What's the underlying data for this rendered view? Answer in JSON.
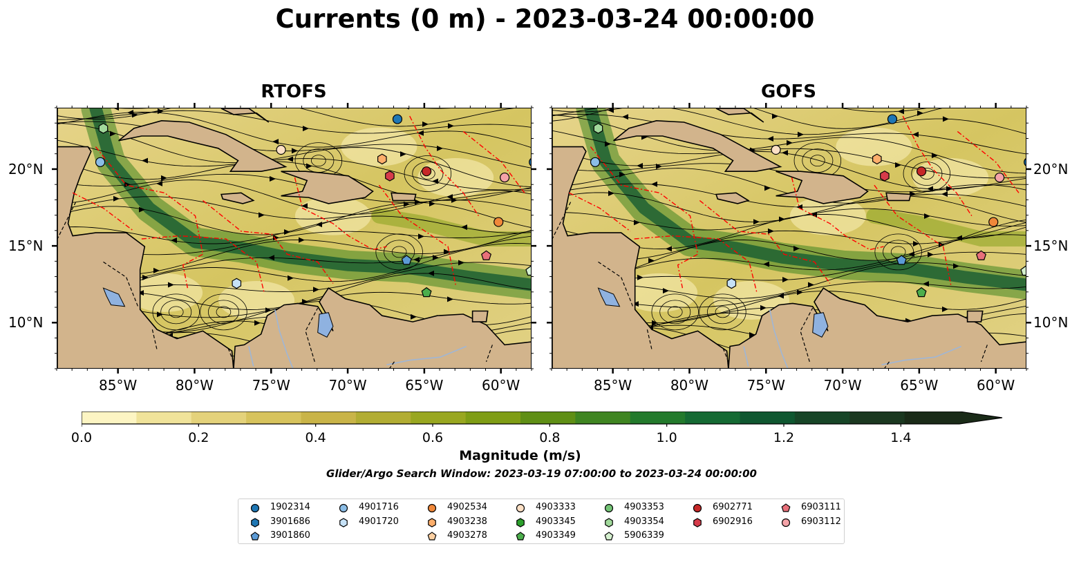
{
  "figure": {
    "title": "Currents (0 m) - 2023-03-24 00:00:00",
    "search_window": "Glider/Argo Search Window: 2023-03-19 07:00:00 to 2023-03-24 00:00:00"
  },
  "panels": [
    {
      "title": "RTOFS"
    },
    {
      "title": "GOFS"
    }
  ],
  "axes": {
    "lon_ticks": [
      "85°W",
      "80°W",
      "75°W",
      "70°W",
      "65°W",
      "60°W"
    ],
    "lat_ticks": [
      "20°N",
      "15°N",
      "10°N"
    ],
    "lon_range": [
      -89.0,
      -58.0
    ],
    "lat_range": [
      7.0,
      24.0
    ]
  },
  "colorbar": {
    "label": "Magnitude (m/s)",
    "ticks": [
      "0.0",
      "0.2",
      "0.4",
      "0.6",
      "0.8",
      "1.0",
      "1.2",
      "1.4"
    ],
    "range": [
      0.0,
      1.5
    ],
    "extend": "max",
    "colors": [
      "#fdf5c3",
      "#f0e39a",
      "#e4d27b",
      "#d7c35d",
      "#c9b448",
      "#b2ad33",
      "#99a720",
      "#7f9d15",
      "#5f8f15",
      "#3f8521",
      "#237a2c",
      "#156a33",
      "#0f5730",
      "#174527",
      "#1b3820",
      "#1a2b18"
    ]
  },
  "colors": {
    "land": "#d2b48c",
    "lakes": "#8fb2e0",
    "rivers": "#9fb6d6",
    "eez_lines": "#ff0000",
    "borders": "#000000"
  },
  "legend": {
    "columns": [
      [
        {
          "id": "1902314",
          "marker": "circle",
          "color": "#1f77b4"
        },
        {
          "id": "3901686",
          "marker": "hexagon",
          "color": "#1f77b4"
        },
        {
          "id": "3901860",
          "marker": "pentagon",
          "color": "#5c9bd6"
        }
      ],
      [
        {
          "id": "4901716",
          "marker": "circle",
          "color": "#8bbde6"
        },
        {
          "id": "4901720",
          "marker": "hexagon",
          "color": "#c6e2f7"
        }
      ],
      [
        {
          "id": "4902534",
          "marker": "circle",
          "color": "#f0883a"
        },
        {
          "id": "4903238",
          "marker": "hexagon",
          "color": "#fdae6b"
        },
        {
          "id": "4903278",
          "marker": "pentagon",
          "color": "#fdd0a2"
        }
      ],
      [
        {
          "id": "4903333",
          "marker": "circle",
          "color": "#fde0c5"
        },
        {
          "id": "4903345",
          "marker": "hexagon",
          "color": "#2ca02c"
        },
        {
          "id": "4903349",
          "marker": "pentagon",
          "color": "#4cae4c"
        }
      ],
      [
        {
          "id": "4903353",
          "marker": "circle",
          "color": "#74c476"
        },
        {
          "id": "4903354",
          "marker": "hexagon",
          "color": "#a1d99b"
        },
        {
          "id": "5906339",
          "marker": "pentagon",
          "color": "#d5f0cf"
        }
      ],
      [
        {
          "id": "6902771",
          "marker": "circle",
          "color": "#c62828"
        },
        {
          "id": "6902916",
          "marker": "hexagon",
          "color": "#d63b4a"
        }
      ],
      [
        {
          "id": "6903111",
          "marker": "pentagon",
          "color": "#e8707a"
        },
        {
          "id": "6903112",
          "marker": "circle",
          "color": "#f4a3a8"
        }
      ]
    ]
  },
  "floats": [
    {
      "id": "1902314",
      "lon": -66.8,
      "lat": 23.3
    },
    {
      "id": "4903354",
      "lon": -86.0,
      "lat": 22.7
    },
    {
      "id": "4901716",
      "lon": -86.2,
      "lat": 20.5
    },
    {
      "id": "4903333",
      "lon": -74.4,
      "lat": 21.3
    },
    {
      "id": "4903238",
      "lon": -67.8,
      "lat": 20.7
    },
    {
      "id": "6902916",
      "lon": -67.3,
      "lat": 19.6
    },
    {
      "id": "6902771",
      "lon": -64.9,
      "lat": 19.9
    },
    {
      "id": "6903112",
      "lon": -59.8,
      "lat": 19.5
    },
    {
      "id": "1902314",
      "lon": -57.9,
      "lat": 20.5
    },
    {
      "id": "4902534",
      "lon": -60.2,
      "lat": 16.6
    },
    {
      "id": "3901860",
      "lon": -66.2,
      "lat": 14.1
    },
    {
      "id": "6903111",
      "lon": -61.0,
      "lat": 14.4
    },
    {
      "id": "5906339",
      "lon": -58.1,
      "lat": 13.4
    },
    {
      "id": "4901720",
      "lon": -77.3,
      "lat": 12.6
    },
    {
      "id": "4903349",
      "lon": -64.9,
      "lat": 12.0
    }
  ]
}
